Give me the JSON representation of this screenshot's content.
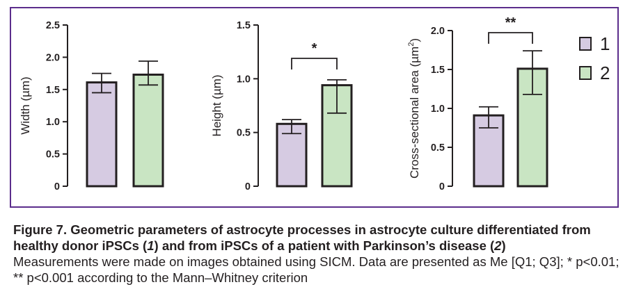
{
  "colors": {
    "frame": "#5b2d8c",
    "group1": "#d6cbe2",
    "group2": "#c9e5c3",
    "ink": "#231f20"
  },
  "legend": [
    {
      "label": "1",
      "color": "#d6cbe2"
    },
    {
      "label": "2",
      "color": "#c9e5c3"
    }
  ],
  "chart_data": [
    {
      "type": "bar",
      "ylabel": "Width (µm)",
      "ylim": [
        0,
        2.5
      ],
      "yticks": [
        "0",
        "0.5",
        "1.0",
        "1.5",
        "2.0",
        "2.5"
      ],
      "categories": [
        "1",
        "2"
      ],
      "values": [
        1.61,
        1.73
      ],
      "error_low": [
        1.45,
        1.57
      ],
      "error_high": [
        1.75,
        1.94
      ],
      "significance": ""
    },
    {
      "type": "bar",
      "ylabel": "Height (µm)",
      "ylim": [
        0,
        1.5
      ],
      "yticks": [
        "0",
        "0.5",
        "1.0",
        "1.5"
      ],
      "categories": [
        "1",
        "2"
      ],
      "values": [
        0.58,
        0.94
      ],
      "error_low": [
        0.49,
        0.68
      ],
      "error_high": [
        0.62,
        0.99
      ],
      "significance": "*"
    },
    {
      "type": "bar",
      "ylabel": "Cross-sectional area (µm2)",
      "ylim": [
        0,
        2.0
      ],
      "yticks": [
        "0",
        "0.5",
        "1.0",
        "1.5",
        "2.0"
      ],
      "categories": [
        "1",
        "2"
      ],
      "values": [
        0.91,
        1.51
      ],
      "error_low": [
        0.75,
        1.18
      ],
      "error_high": [
        1.02,
        1.74
      ],
      "significance": "**"
    }
  ],
  "caption": {
    "title_prefix": "Figure 7. Geometric parameters of astrocyte processes in astrocyte culture differentiated from healthy donor iPSCs (",
    "title_g1": "1",
    "title_mid": ") and from iPSCs of a patient with Parkinson’s disease (",
    "title_g2": "2",
    "title_end": ")",
    "body": "Measurements were made on images obtained using SICM. Data are presented as Me [Q1; Q3]; * p<0.01; ** p<0.001 according to the Mann–Whitney criterion"
  }
}
